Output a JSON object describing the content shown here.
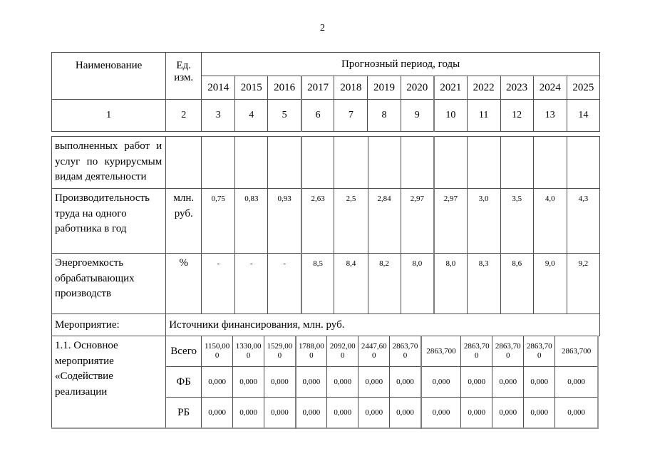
{
  "page": {
    "number": "2"
  },
  "table": {
    "header": {
      "name_col": "Наименование",
      "unit_col": "Ед. изм.",
      "period_title": "Прогнозный период, годы",
      "years": [
        "2014",
        "2015",
        "2016",
        "2017",
        "2018",
        "2019",
        "2020",
        "2021",
        "2022",
        "2023",
        "2024",
        "2025"
      ],
      "col_numbers": [
        "1",
        "2",
        "3",
        "4",
        "5",
        "6",
        "7",
        "8",
        "9",
        "10",
        "11",
        "12",
        "13",
        "14"
      ]
    },
    "continuation_row": {
      "name": "выполненных работ и услуг по курирусмым видам деятельности",
      "empty_values": [
        "",
        "",
        "",
        "",
        "",
        "",
        "",
        "",
        "",
        "",
        "",
        ""
      ]
    },
    "indicator_rows": [
      {
        "name": "Производительность труда на одного работника в год",
        "unit": "млн. руб.",
        "values": [
          "0,75",
          "0,83",
          "0,93",
          "2,63",
          "2,5",
          "2,84",
          "2,97",
          "2,97",
          "3,0",
          "3,5",
          "4,0",
          "4,3"
        ]
      },
      {
        "name": "Энергоемкость обрабатывающих производств",
        "unit": "%",
        "values": [
          "-",
          "-",
          "-",
          "8,5",
          "8,4",
          "8,2",
          "8,0",
          "8,0",
          "8,3",
          "8,6",
          "9,0",
          "9,2"
        ]
      }
    ],
    "measure_row": {
      "label": "Мероприятие:",
      "value": "Источники финансирования, млн. руб."
    },
    "financing_block": {
      "name": "1.1. Основное мероприятие «Содействие реализации",
      "rows": [
        {
          "source": "Всего",
          "values": [
            "1150,000",
            "1330,000",
            "1529,000",
            "1788,000",
            "2092,000",
            "2447,600",
            "2863,700",
            "2863,700",
            "2863,700",
            "2863,700",
            "2863,700",
            "2863,700"
          ]
        },
        {
          "source": "ФБ",
          "values": [
            "0,000",
            "0,000",
            "0,000",
            "0,000",
            "0,000",
            "0,000",
            "0,000",
            "0,000",
            "0,000",
            "0,000",
            "0,000",
            "0,000"
          ]
        },
        {
          "source": "РБ",
          "values": [
            "0,000",
            "0,000",
            "0,000",
            "0,000",
            "0,000",
            "0,000",
            "0,000",
            "0,000",
            "0,000",
            "0,000",
            "0,000",
            "0,000"
          ]
        }
      ]
    }
  }
}
